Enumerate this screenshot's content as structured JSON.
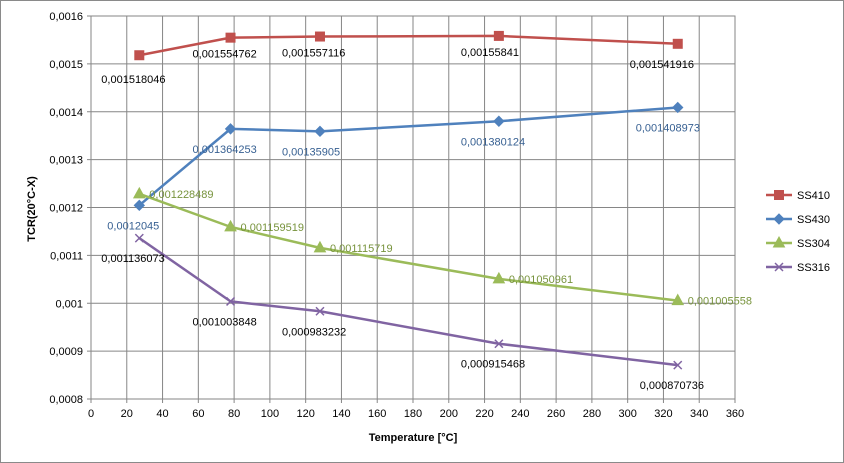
{
  "chart_data": {
    "type": "line",
    "xlabel": "Temperature [°C]",
    "ylabel": "TCR(20°C-X)",
    "xlim": [
      0,
      360
    ],
    "ylim": [
      0.0008,
      0.0016
    ],
    "x_ticks": [
      "0",
      "20",
      "40",
      "60",
      "80",
      "100",
      "120",
      "140",
      "160",
      "180",
      "200",
      "220",
      "240",
      "260",
      "280",
      "300",
      "320",
      "340",
      "360"
    ],
    "y_ticks": [
      "0,0008",
      "0,0009",
      "0,001",
      "0,0011",
      "0,0012",
      "0,0013",
      "0,0014",
      "0,0015",
      "0,0016"
    ],
    "grid": true,
    "legend_position": "right",
    "series": [
      {
        "name": "SS410",
        "color": "#C0504D",
        "marker": "square",
        "x": [
          27,
          78,
          128,
          228,
          328
        ],
        "y": [
          0.001518046,
          0.001554762,
          0.001557116,
          0.00155841,
          0.001541916
        ],
        "labels": [
          "0,001518046",
          "0,001554762",
          "0,001557116",
          "0,00155841",
          "0,001541916"
        ],
        "label_color": "#000000"
      },
      {
        "name": "SS430",
        "color": "#4F81BD",
        "marker": "diamond",
        "x": [
          27,
          78,
          128,
          228,
          328
        ],
        "y": [
          0.0012045,
          0.001364253,
          0.00135905,
          0.001380124,
          0.001408973
        ],
        "labels": [
          "0,0012045",
          "0,001364253",
          "0,00135905",
          "0,001380124",
          "0,001408973"
        ],
        "label_color": "#376092"
      },
      {
        "name": "SS304",
        "color": "#9BBB59",
        "marker": "triangle",
        "x": [
          27,
          78,
          128,
          228,
          328
        ],
        "y": [
          0.001228489,
          0.001159519,
          0.001115719,
          0.001050961,
          0.001005558
        ],
        "labels": [
          "0,001228489",
          "0,001159519",
          "0,001115719",
          "0,001050961",
          "0,001005558"
        ],
        "label_color": "#77933C"
      },
      {
        "name": "SS316",
        "color": "#8064A2",
        "marker": "x",
        "x": [
          27,
          78,
          128,
          228,
          328
        ],
        "y": [
          0.001136073,
          0.001003848,
          0.000983232,
          0.000915468,
          0.000870736
        ],
        "labels": [
          "0,001136073",
          "0,001003848",
          "0,000983232",
          "0,000915468",
          "0,000870736"
        ],
        "label_color": "#000000"
      }
    ]
  }
}
